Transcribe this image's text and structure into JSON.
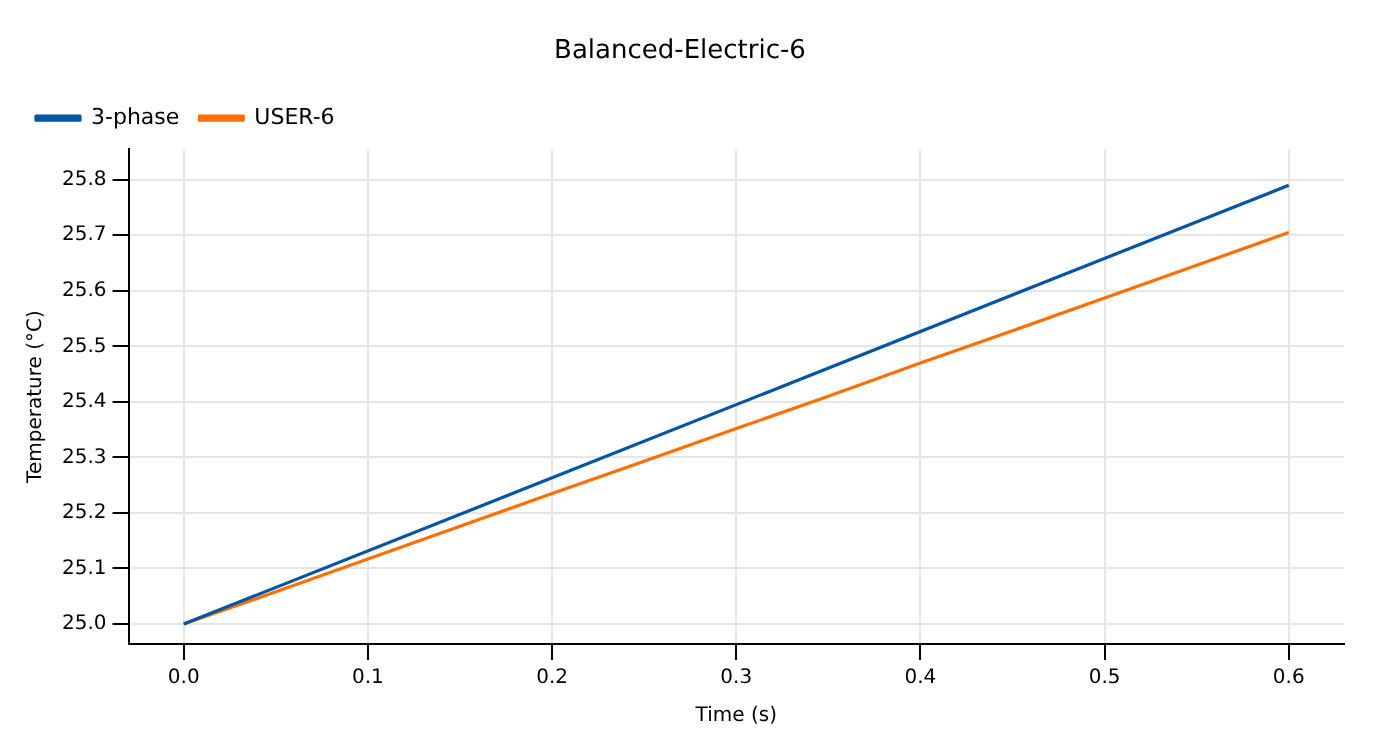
{
  "chart_data": {
    "type": "line",
    "title": "Balanced-Electric-6",
    "xlabel": "Time (s)",
    "ylabel": "Temperature (°C)",
    "series": [
      {
        "name": "3-phase",
        "color": "#0055a4",
        "x": [
          0,
          0.6
        ],
        "values": [
          25.0,
          25.79
        ]
      },
      {
        "name": "USER-6",
        "color": "#ff6f00",
        "x": [
          0,
          0.05,
          0.1,
          0.15,
          0.2,
          0.25,
          0.3,
          0.35,
          0.4,
          0.45,
          0.5,
          0.55,
          0.6
        ],
        "values": [
          25.0,
          25.058,
          25.117,
          25.176,
          25.235,
          25.293,
          25.352,
          25.41,
          25.47,
          25.528,
          25.587,
          25.646,
          25.705
        ]
      }
    ],
    "xlim": [
      -0.03,
      0.63
    ],
    "xticks": [
      {
        "value": 0,
        "label": "0.0"
      },
      0.1,
      0.2,
      0.3,
      0.4,
      0.5,
      0.6
    ],
    "ylim": [
      24.964,
      25.855
    ],
    "yticks": [
      {
        "value": 25,
        "label": "25.0"
      },
      25.1,
      25.2,
      25.3,
      25.4,
      25.5,
      25.6,
      25.7,
      25.8
    ],
    "grid": true,
    "legend": "top left",
    "marker": "none",
    "line_style": "solid"
  }
}
